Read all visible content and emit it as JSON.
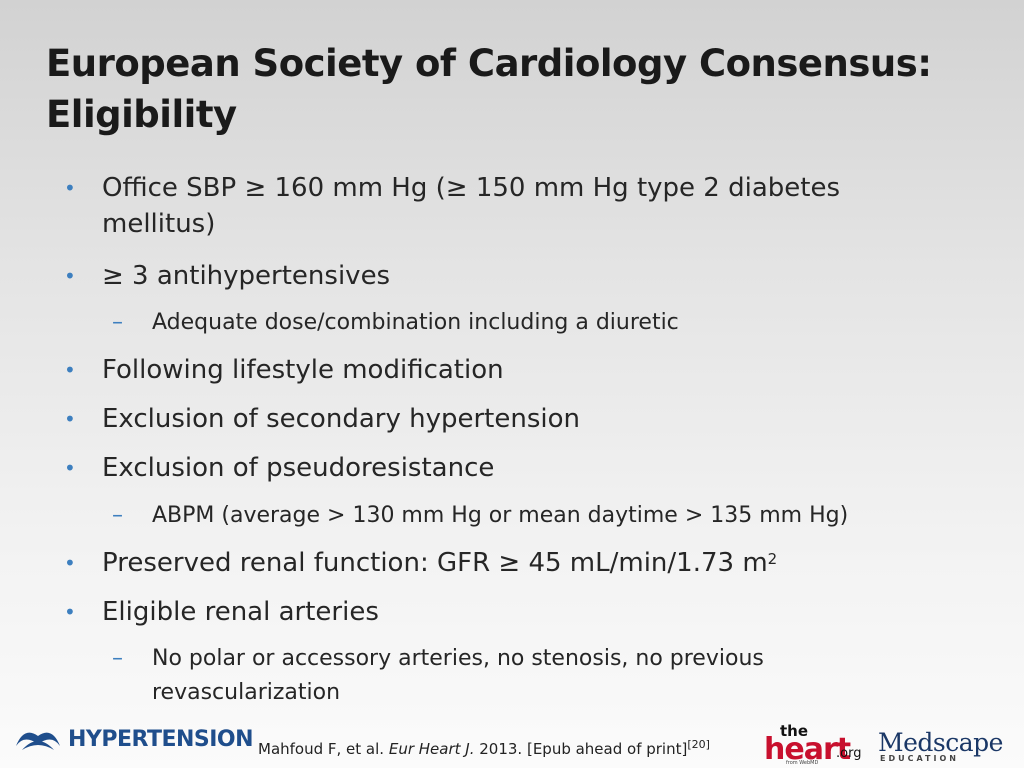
{
  "slide": {
    "title_line1": "European Society of Cardiology Consensus:",
    "title_line2": "Eligibility",
    "bullets": [
      {
        "text_line1": "Office SBP ≥ 160 mm Hg (≥ 150 mm Hg type 2 diabetes",
        "text_line2": "mellitus)"
      },
      {
        "text": "≥ 3 antihypertensives"
      },
      {
        "sub": "Adequate dose/combination including a diuretic"
      },
      {
        "text": "Following lifestyle modification"
      },
      {
        "text": "Exclusion of secondary hypertension"
      },
      {
        "text": "Exclusion of pseudoresistance"
      },
      {
        "sub": "ABPM (average > 130 mm Hg or mean daytime > 135 mm Hg)"
      },
      {
        "text": "Preserved renal function: GFR ≥ 45 mL/min/1.73 m",
        "sup": "2"
      },
      {
        "text": "Eligible renal arteries"
      },
      {
        "sub_line1": "No polar or accessory arteries, no stenosis, no previous",
        "sub_line2": "revascularization"
      }
    ],
    "bullet_symbol": "•",
    "sub_symbol": "–"
  },
  "footer": {
    "logo_left": "HYPERTENSION",
    "citation_prefix": "Mahfoud F, et al. ",
    "citation_journal": "Eur Heart J.",
    "citation_suffix": " 2013. [Epub ahead of print]",
    "citation_ref": "[20]",
    "theheart_the": "the",
    "theheart_heart": "heart",
    "theheart_org": ".org",
    "theheart_from": "from WebMD",
    "medscape_m": "Medscape",
    "medscape_edu": "EDUCATION"
  },
  "colors": {
    "bullet": "#3d7fbf",
    "hypertension_logo": "#1f4e8c",
    "theheart_red": "#c8102e",
    "medscape_blue": "#1a3766"
  }
}
